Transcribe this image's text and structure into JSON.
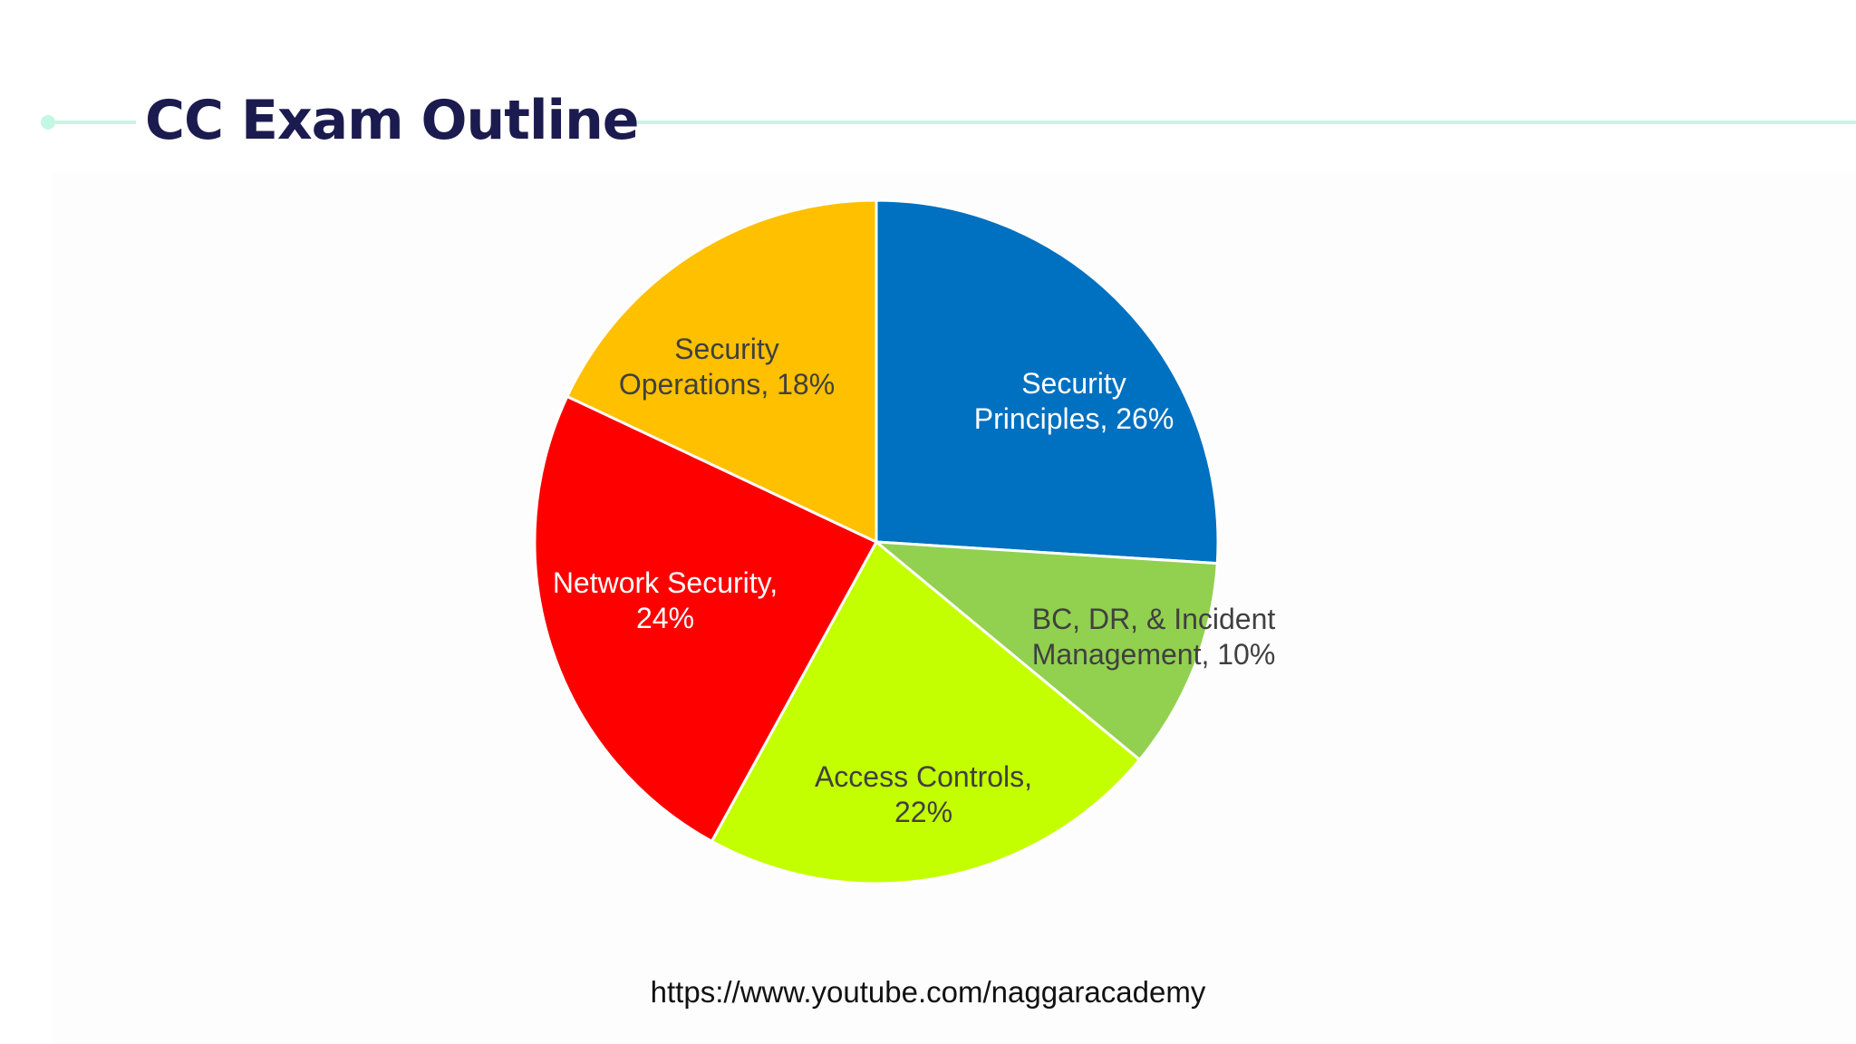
{
  "slide": {
    "title": "CC Exam Outline",
    "footer_url": "https://www.youtube.com/naggaracademy"
  },
  "colors": {
    "accent_line": "#c4f7e3",
    "title_text": "#1c1b4f"
  },
  "chart_data": {
    "type": "pie",
    "title": "",
    "start_angle_deg": 0,
    "direction": "clockwise",
    "slices": [
      {
        "label_lines": [
          "Security",
          "Principles, 26%"
        ],
        "value": 26,
        "color": "#0070c0",
        "label_color": "#ffffff"
      },
      {
        "label_lines": [
          "BC, DR, & Incident",
          "Management, 10%"
        ],
        "value": 10,
        "color": "#92d050",
        "label_color": "#404040"
      },
      {
        "label_lines": [
          "Access Controls,",
          "22%"
        ],
        "value": 22,
        "color": "#c4ff00",
        "label_color": "#404040"
      },
      {
        "label_lines": [
          "Network Security,",
          "24%"
        ],
        "value": 24,
        "color": "#ff0000",
        "label_color": "#ffffff"
      },
      {
        "label_lines": [
          "Security",
          "Operations, 18%"
        ],
        "value": 18,
        "color": "#ffc000",
        "label_color": "#404040"
      }
    ]
  }
}
